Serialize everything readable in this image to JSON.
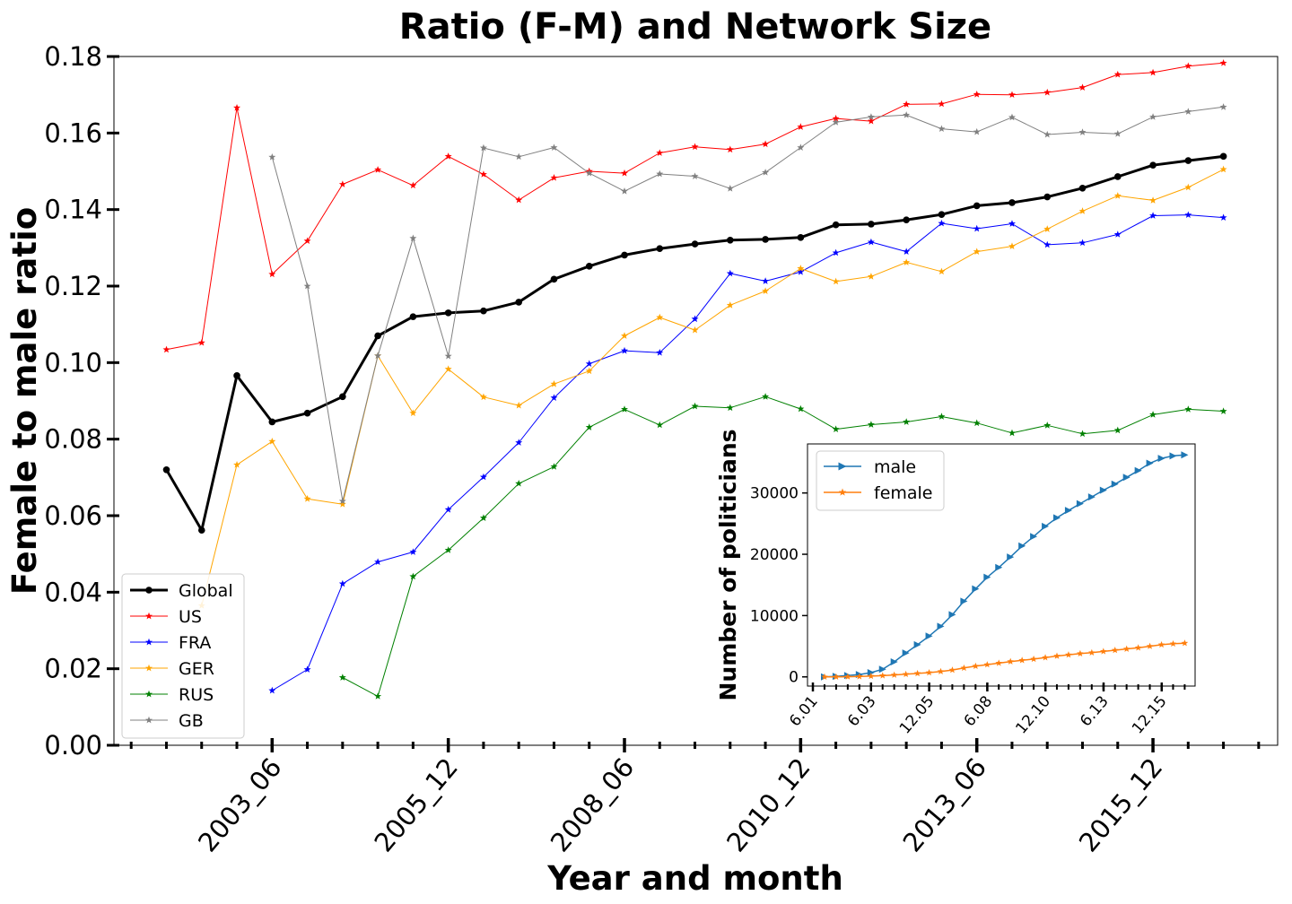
{
  "chart_data": [
    {
      "type": "line",
      "title": "Ratio (F-M) and Network Size",
      "xlabel": "Year and month",
      "ylabel": "Female to male ratio",
      "ylim": [
        0,
        0.18
      ],
      "yticks": [
        "0.00",
        "0.02",
        "0.04",
        "0.06",
        "0.08",
        "0.10",
        "0.12",
        "0.14",
        "0.16",
        "0.18"
      ],
      "x_tick_labels": [
        "2003_06",
        "2005_12",
        "2008_06",
        "2010_12",
        "2013_06",
        "2015_12"
      ],
      "x_period_months": 6,
      "x_labeled_tick_interval": 5,
      "legend_position": "lower-left",
      "grid": false,
      "series": [
        {
          "name": "Global",
          "color": "#000000",
          "marker": "circle",
          "start_index": 0,
          "values": [
            0.072,
            0.0562,
            0.0966,
            0.0845,
            0.0868,
            0.0911,
            0.107,
            0.112,
            0.113,
            0.1135,
            0.1158,
            0.1218,
            0.1252,
            0.1281,
            0.1298,
            0.131,
            0.132,
            0.1322,
            0.1327,
            0.136,
            0.1362,
            0.1373,
            0.1387,
            0.141,
            0.1418,
            0.1433,
            0.1456,
            0.1486,
            0.1516,
            0.1528,
            0.1539
          ]
        },
        {
          "name": "US",
          "color": "#ff0000",
          "marker": "star",
          "start_index": 0,
          "values": [
            0.1034,
            0.1052,
            0.1666,
            0.1231,
            0.1318,
            0.1466,
            0.1504,
            0.1463,
            0.1539,
            0.1492,
            0.1425,
            0.1483,
            0.15,
            0.1495,
            0.1548,
            0.1564,
            0.1557,
            0.1571,
            0.1616,
            0.1638,
            0.1631,
            0.1675,
            0.1676,
            0.1701,
            0.17,
            0.1706,
            0.1719,
            0.1753,
            0.1758,
            0.1775,
            0.1783
          ]
        },
        {
          "name": "FRA",
          "color": "#0000ff",
          "marker": "star",
          "start_index": 3,
          "values": [
            0.0143,
            0.0198,
            0.0422,
            0.0479,
            0.0505,
            0.0616,
            0.0701,
            0.0791,
            0.0908,
            0.0997,
            0.1031,
            0.1026,
            0.1114,
            0.1233,
            0.1213,
            0.1237,
            0.1287,
            0.1315,
            0.129,
            0.1364,
            0.135,
            0.1363,
            0.1308,
            0.1313,
            0.1335,
            0.1384,
            0.1386,
            0.1379
          ]
        },
        {
          "name": "GER",
          "color": "#ffa500",
          "marker": "star",
          "start_index": 1,
          "values": [
            0.0365,
            0.0733,
            0.0794,
            0.0644,
            0.063,
            0.1018,
            0.0868,
            0.0983,
            0.091,
            0.0888,
            0.0944,
            0.0978,
            0.107,
            0.1118,
            0.1085,
            0.115,
            0.1187,
            0.1246,
            0.1212,
            0.1225,
            0.1262,
            0.1238,
            0.129,
            0.1304,
            0.1349,
            0.1396,
            0.1436,
            0.1424,
            0.1458,
            0.1505
          ]
        },
        {
          "name": "RUS",
          "color": "#008000",
          "marker": "star",
          "start_index": 5,
          "values": [
            0.0177,
            0.0128,
            0.0441,
            0.051,
            0.0594,
            0.0684,
            0.0728,
            0.0831,
            0.0878,
            0.0837,
            0.0886,
            0.0882,
            0.0911,
            0.0879,
            0.0826,
            0.0838,
            0.0845,
            0.0859,
            0.0842,
            0.0816,
            0.0836,
            0.0814,
            0.0823,
            0.0864,
            0.0878,
            0.0873
          ]
        },
        {
          "name": "GB",
          "color": "#808080",
          "marker": "star",
          "start_index": 3,
          "values": [
            0.1537,
            0.12,
            0.0638,
            0.1018,
            0.1325,
            0.1017,
            0.1561,
            0.1538,
            0.1562,
            0.1495,
            0.1448,
            0.1493,
            0.1487,
            0.1455,
            0.1497,
            0.1562,
            0.1628,
            0.1642,
            0.1647,
            0.1611,
            0.1603,
            0.1641,
            0.1596,
            0.1602,
            0.1598,
            0.1642,
            0.1656,
            0.1668
          ]
        }
      ]
    },
    {
      "type": "line",
      "title": "",
      "xlabel": "",
      "ylabel": "Number of politicians",
      "ylim": [
        -1500,
        38000
      ],
      "yticks": [
        "0",
        "10000",
        "20000",
        "30000"
      ],
      "x_tick_labels": [
        "6.01",
        "6.03",
        "12.05",
        "6.08",
        "12.10",
        "6.13",
        "12.15"
      ],
      "legend_position": "upper-left",
      "series": [
        {
          "name": "male",
          "color": "#1f77b4",
          "marker": "triangle-right",
          "values": [
            0,
            90,
            210,
            390,
            700,
            1250,
            2450,
            3900,
            5250,
            6650,
            8250,
            10150,
            12350,
            14350,
            16250,
            17850,
            19550,
            21350,
            22900,
            24550,
            25950,
            27150,
            28250,
            29350,
            30450,
            31450,
            32550,
            33650,
            34850,
            35650,
            36050,
            36200
          ]
        },
        {
          "name": "female",
          "color": "#ff7f0e",
          "marker": "star",
          "values": [
            0,
            5,
            25,
            60,
            120,
            200,
            310,
            430,
            560,
            700,
            880,
            1120,
            1450,
            1750,
            2000,
            2250,
            2500,
            2700,
            2900,
            3150,
            3400,
            3600,
            3800,
            3950,
            4150,
            4350,
            4550,
            4750,
            5000,
            5250,
            5400,
            5500
          ]
        }
      ]
    }
  ]
}
